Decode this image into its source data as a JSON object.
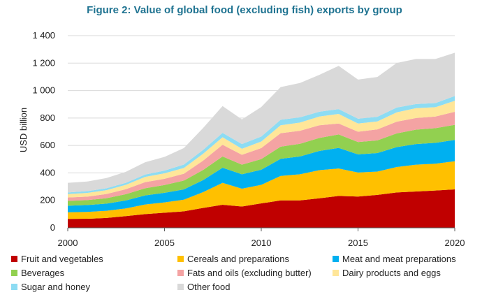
{
  "chart_data": {
    "type": "area",
    "title": "Figure 2: Value of global food (excluding fish) exports by group",
    "ylabel": "USD billion",
    "xlabel": "",
    "stacked": true,
    "x": [
      2000,
      2001,
      2002,
      2003,
      2004,
      2005,
      2006,
      2007,
      2008,
      2009,
      2010,
      2011,
      2012,
      2013,
      2014,
      2015,
      2016,
      2017,
      2018,
      2019,
      2020
    ],
    "xticks": [
      2000,
      2005,
      2010,
      2015,
      2020
    ],
    "ylim": [
      0,
      1400
    ],
    "yticks": [
      0,
      200,
      400,
      600,
      800,
      1000,
      1200,
      1400
    ],
    "ytick_labels": [
      "0",
      "200",
      "400",
      "600",
      "800",
      "1 000",
      "1 200",
      "1 400"
    ],
    "grid": true,
    "legend_position": "bottom",
    "series": [
      {
        "name": "Fruit and vegetables",
        "color": "#c00000",
        "values": [
          65,
          66,
          72,
          85,
          100,
          110,
          120,
          145,
          168,
          155,
          178,
          200,
          200,
          215,
          232,
          228,
          240,
          258,
          265,
          272,
          280
        ]
      },
      {
        "name": "Cereals and preparations",
        "color": "#ffc000",
        "values": [
          48,
          50,
          52,
          56,
          70,
          75,
          85,
          115,
          160,
          130,
          135,
          178,
          190,
          205,
          200,
          175,
          170,
          185,
          195,
          195,
          205
        ]
      },
      {
        "name": "Meat and meat preparations",
        "color": "#00b0f0",
        "values": [
          48,
          50,
          52,
          58,
          66,
          70,
          75,
          88,
          110,
          105,
          110,
          125,
          130,
          140,
          150,
          132,
          135,
          145,
          150,
          152,
          155
        ]
      },
      {
        "name": "Beverages",
        "color": "#92d050",
        "values": [
          35,
          36,
          40,
          46,
          52,
          57,
          64,
          74,
          82,
          70,
          78,
          88,
          92,
          95,
          98,
          90,
          92,
          100,
          105,
          107,
          110
        ]
      },
      {
        "name": "Fats and oils (excluding butter)",
        "color": "#f4a3a3",
        "values": [
          25,
          25,
          30,
          36,
          45,
          45,
          50,
          68,
          85,
          72,
          80,
          98,
          95,
          92,
          80,
          75,
          80,
          85,
          85,
          85,
          95
        ]
      },
      {
        "name": "Dairy products and eggs",
        "color": "#ffe699",
        "values": [
          25,
          27,
          28,
          32,
          38,
          40,
          42,
          50,
          55,
          44,
          48,
          58,
          60,
          64,
          70,
          60,
          58,
          68,
          72,
          68,
          80
        ]
      },
      {
        "name": "Sugar and honey",
        "color": "#8ddcf3",
        "values": [
          12,
          13,
          14,
          15,
          17,
          20,
          25,
          28,
          32,
          34,
          36,
          40,
          38,
          35,
          35,
          35,
          34,
          35,
          30,
          30,
          35
        ]
      },
      {
        "name": "Other food",
        "color": "#d9d9d9",
        "values": [
          70,
          70,
          75,
          80,
          90,
          100,
          120,
          160,
          195,
          180,
          215,
          238,
          250,
          268,
          315,
          285,
          290,
          325,
          328,
          321,
          315
        ]
      }
    ]
  }
}
